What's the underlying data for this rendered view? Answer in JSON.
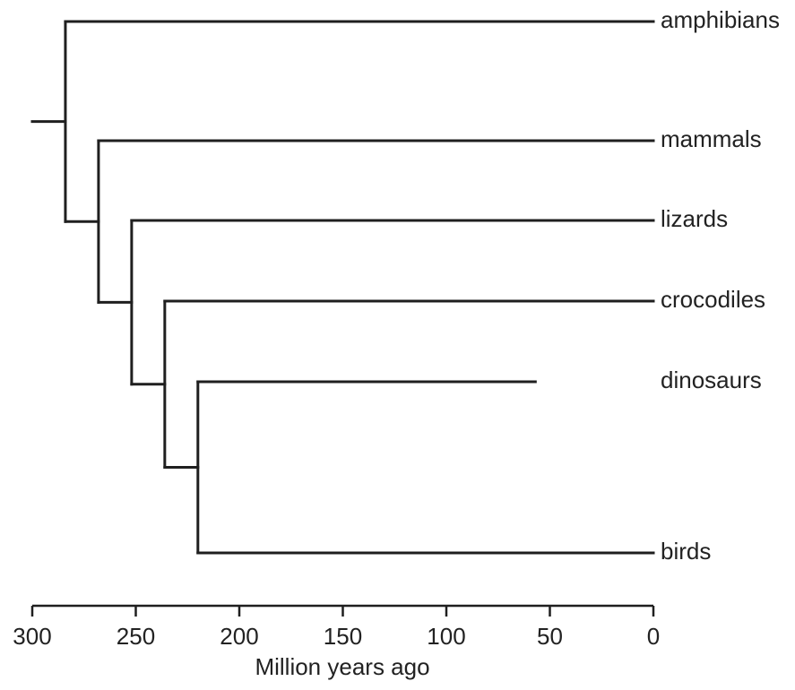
{
  "tree": {
    "taxa": [
      {
        "id": "amphibians",
        "label": "amphibians",
        "end_mya": 0
      },
      {
        "id": "mammals",
        "label": "mammals",
        "end_mya": 0
      },
      {
        "id": "lizards",
        "label": "lizards",
        "end_mya": 0
      },
      {
        "id": "crocodiles",
        "label": "crocodiles",
        "end_mya": 0
      },
      {
        "id": "dinosaurs",
        "label": "dinosaurs",
        "end_mya": 57
      },
      {
        "id": "birds",
        "label": "birds",
        "end_mya": 0
      }
    ],
    "nodes": [
      {
        "id": "n1",
        "split_mya": 284,
        "children": [
          "amphibians",
          "n2"
        ]
      },
      {
        "id": "n2",
        "split_mya": 268,
        "children": [
          "mammals",
          "n3"
        ]
      },
      {
        "id": "n3",
        "split_mya": 252,
        "children": [
          "lizards",
          "n4"
        ]
      },
      {
        "id": "n4",
        "split_mya": 236,
        "children": [
          "crocodiles",
          "n5"
        ]
      },
      {
        "id": "n5",
        "split_mya": 220,
        "children": [
          "dinosaurs",
          "birds"
        ]
      }
    ],
    "root_stem_start_mya": 300
  },
  "axis": {
    "title": "Million years ago",
    "min": 0,
    "max": 300,
    "reversed": true,
    "ticks": [
      {
        "value": 300,
        "label": "300"
      },
      {
        "value": 250,
        "label": "250"
      },
      {
        "value": 200,
        "label": "200"
      },
      {
        "value": 150,
        "label": "150"
      },
      {
        "value": 100,
        "label": "100"
      },
      {
        "value": 50,
        "label": "50"
      },
      {
        "value": 0,
        "label": "0"
      }
    ]
  },
  "colors": {
    "line": "#1f1f1f",
    "text": "#222222",
    "background": "#ffffff"
  }
}
